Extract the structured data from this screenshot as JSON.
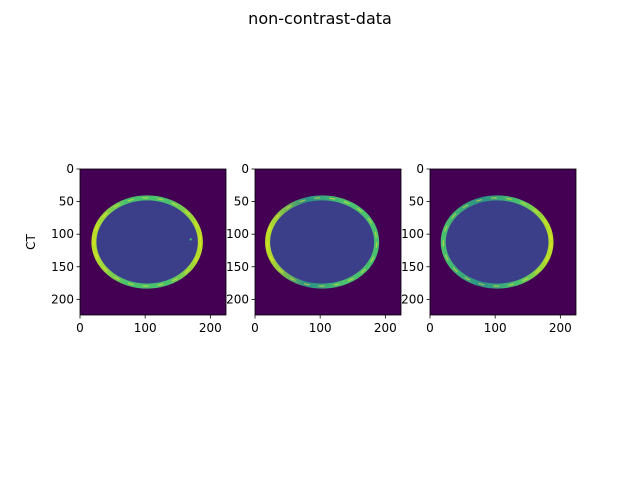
{
  "figure": {
    "suptitle": "non-contrast-data",
    "row_label": "CT"
  },
  "chart_data": [
    {
      "type": "heatmap",
      "xlim": [
        0,
        224
      ],
      "ylim": [
        224,
        0
      ],
      "xticks": [
        0,
        100,
        200
      ],
      "yticks": [
        0,
        50,
        100,
        150,
        200
      ],
      "ylabel": "CT",
      "colormap": "viridis",
      "slice": {
        "cx": 103,
        "cy": 112,
        "rx": 84,
        "ry": 70,
        "bright_side": "both",
        "spots": true
      }
    },
    {
      "type": "heatmap",
      "xlim": [
        0,
        224
      ],
      "ylim": [
        224,
        0
      ],
      "xticks": [
        0,
        100,
        200
      ],
      "yticks": [
        0,
        50,
        100,
        150,
        200
      ],
      "ylabel": "",
      "colormap": "viridis",
      "slice": {
        "cx": 103,
        "cy": 112,
        "rx": 86,
        "ry": 70,
        "bright_side": "left",
        "spots": false
      }
    },
    {
      "type": "heatmap",
      "xlim": [
        0,
        224
      ],
      "ylim": [
        224,
        0
      ],
      "xticks": [
        0,
        100,
        200
      ],
      "yticks": [
        0,
        50,
        100,
        150,
        200
      ],
      "ylabel": "",
      "colormap": "viridis",
      "slice": {
        "cx": 103,
        "cy": 112,
        "rx": 85,
        "ry": 70,
        "bright_side": "right",
        "spots": false
      }
    }
  ],
  "colors": {
    "background": "#440154",
    "brain": "#3b3f8a",
    "skull_dim": "#2a9087",
    "skull_mid": "#4ac16d",
    "skull_bright": "#bddf26",
    "skull_peak": "#fde725"
  }
}
